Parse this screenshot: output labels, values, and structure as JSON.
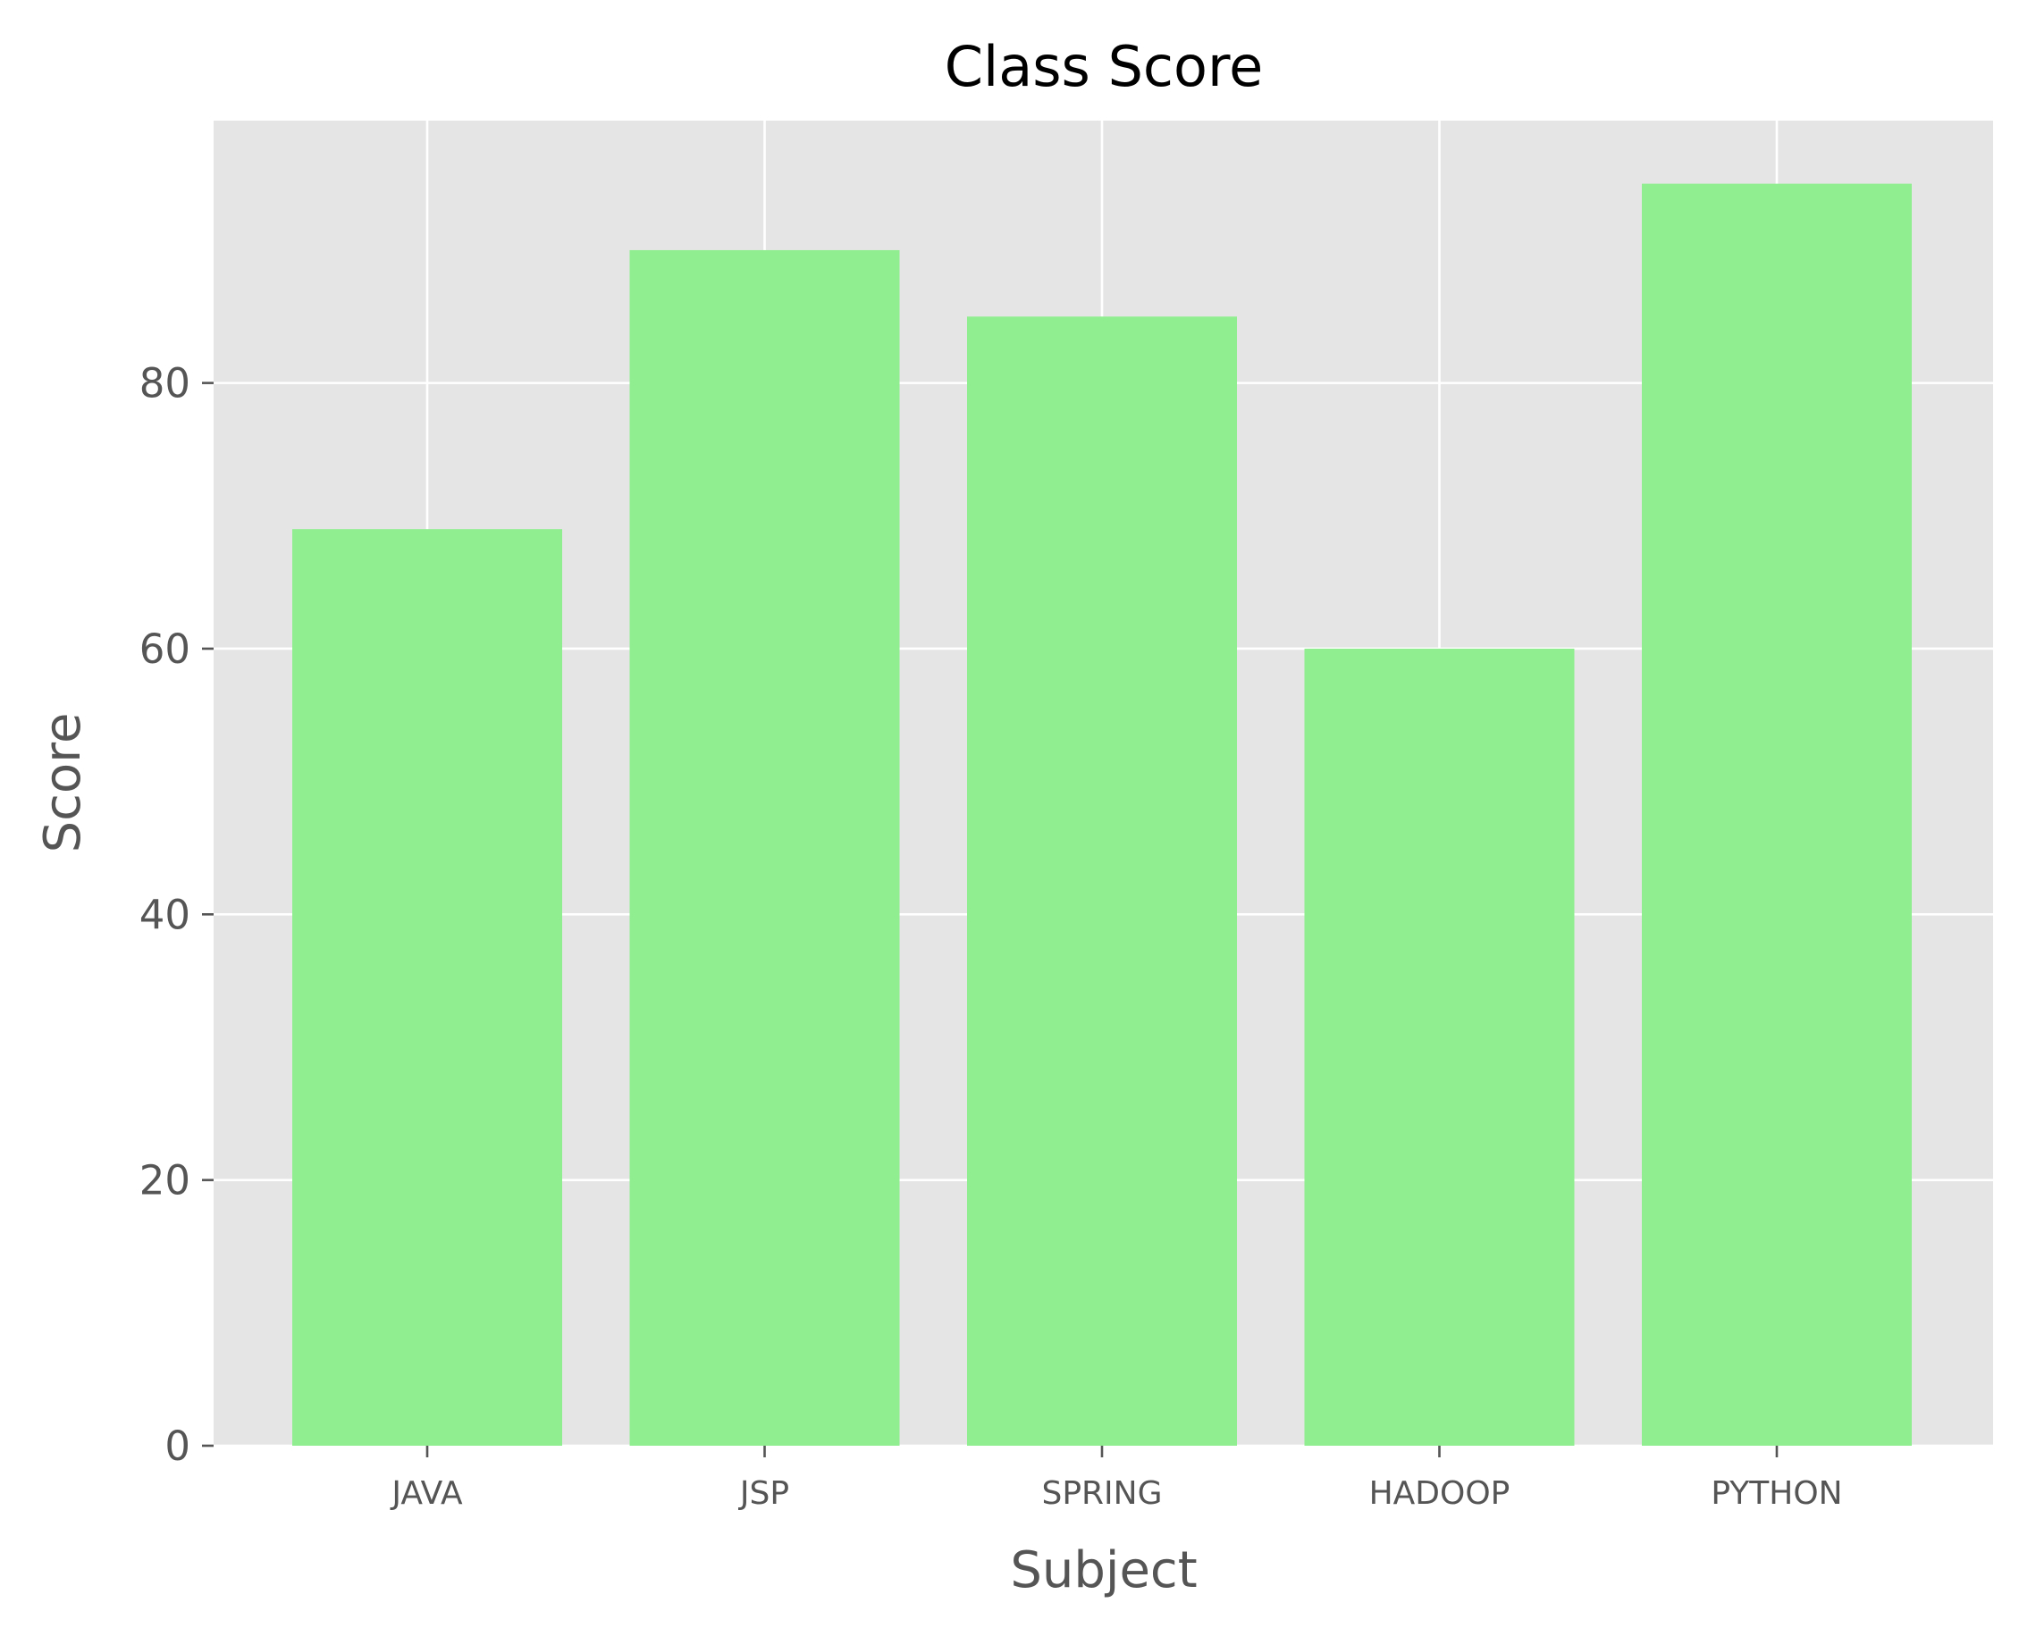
{
  "chart_data": {
    "type": "bar",
    "title": "Class Score",
    "xlabel": "Subject",
    "ylabel": "Score",
    "categories": [
      "JAVA",
      "JSP",
      "SPRING",
      "HADOOP",
      "PYTHON"
    ],
    "values": [
      69,
      90,
      85,
      60,
      95
    ],
    "yticks": [
      0,
      20,
      40,
      60,
      80
    ],
    "ylim": [
      0,
      99.75
    ],
    "grid": true,
    "legend": "none",
    "colors": {
      "bar": "#90ee90",
      "plot_background": "#e5e5e5",
      "grid": "#ffffff",
      "tick_text": "#555555",
      "title_text": "#000000"
    }
  }
}
